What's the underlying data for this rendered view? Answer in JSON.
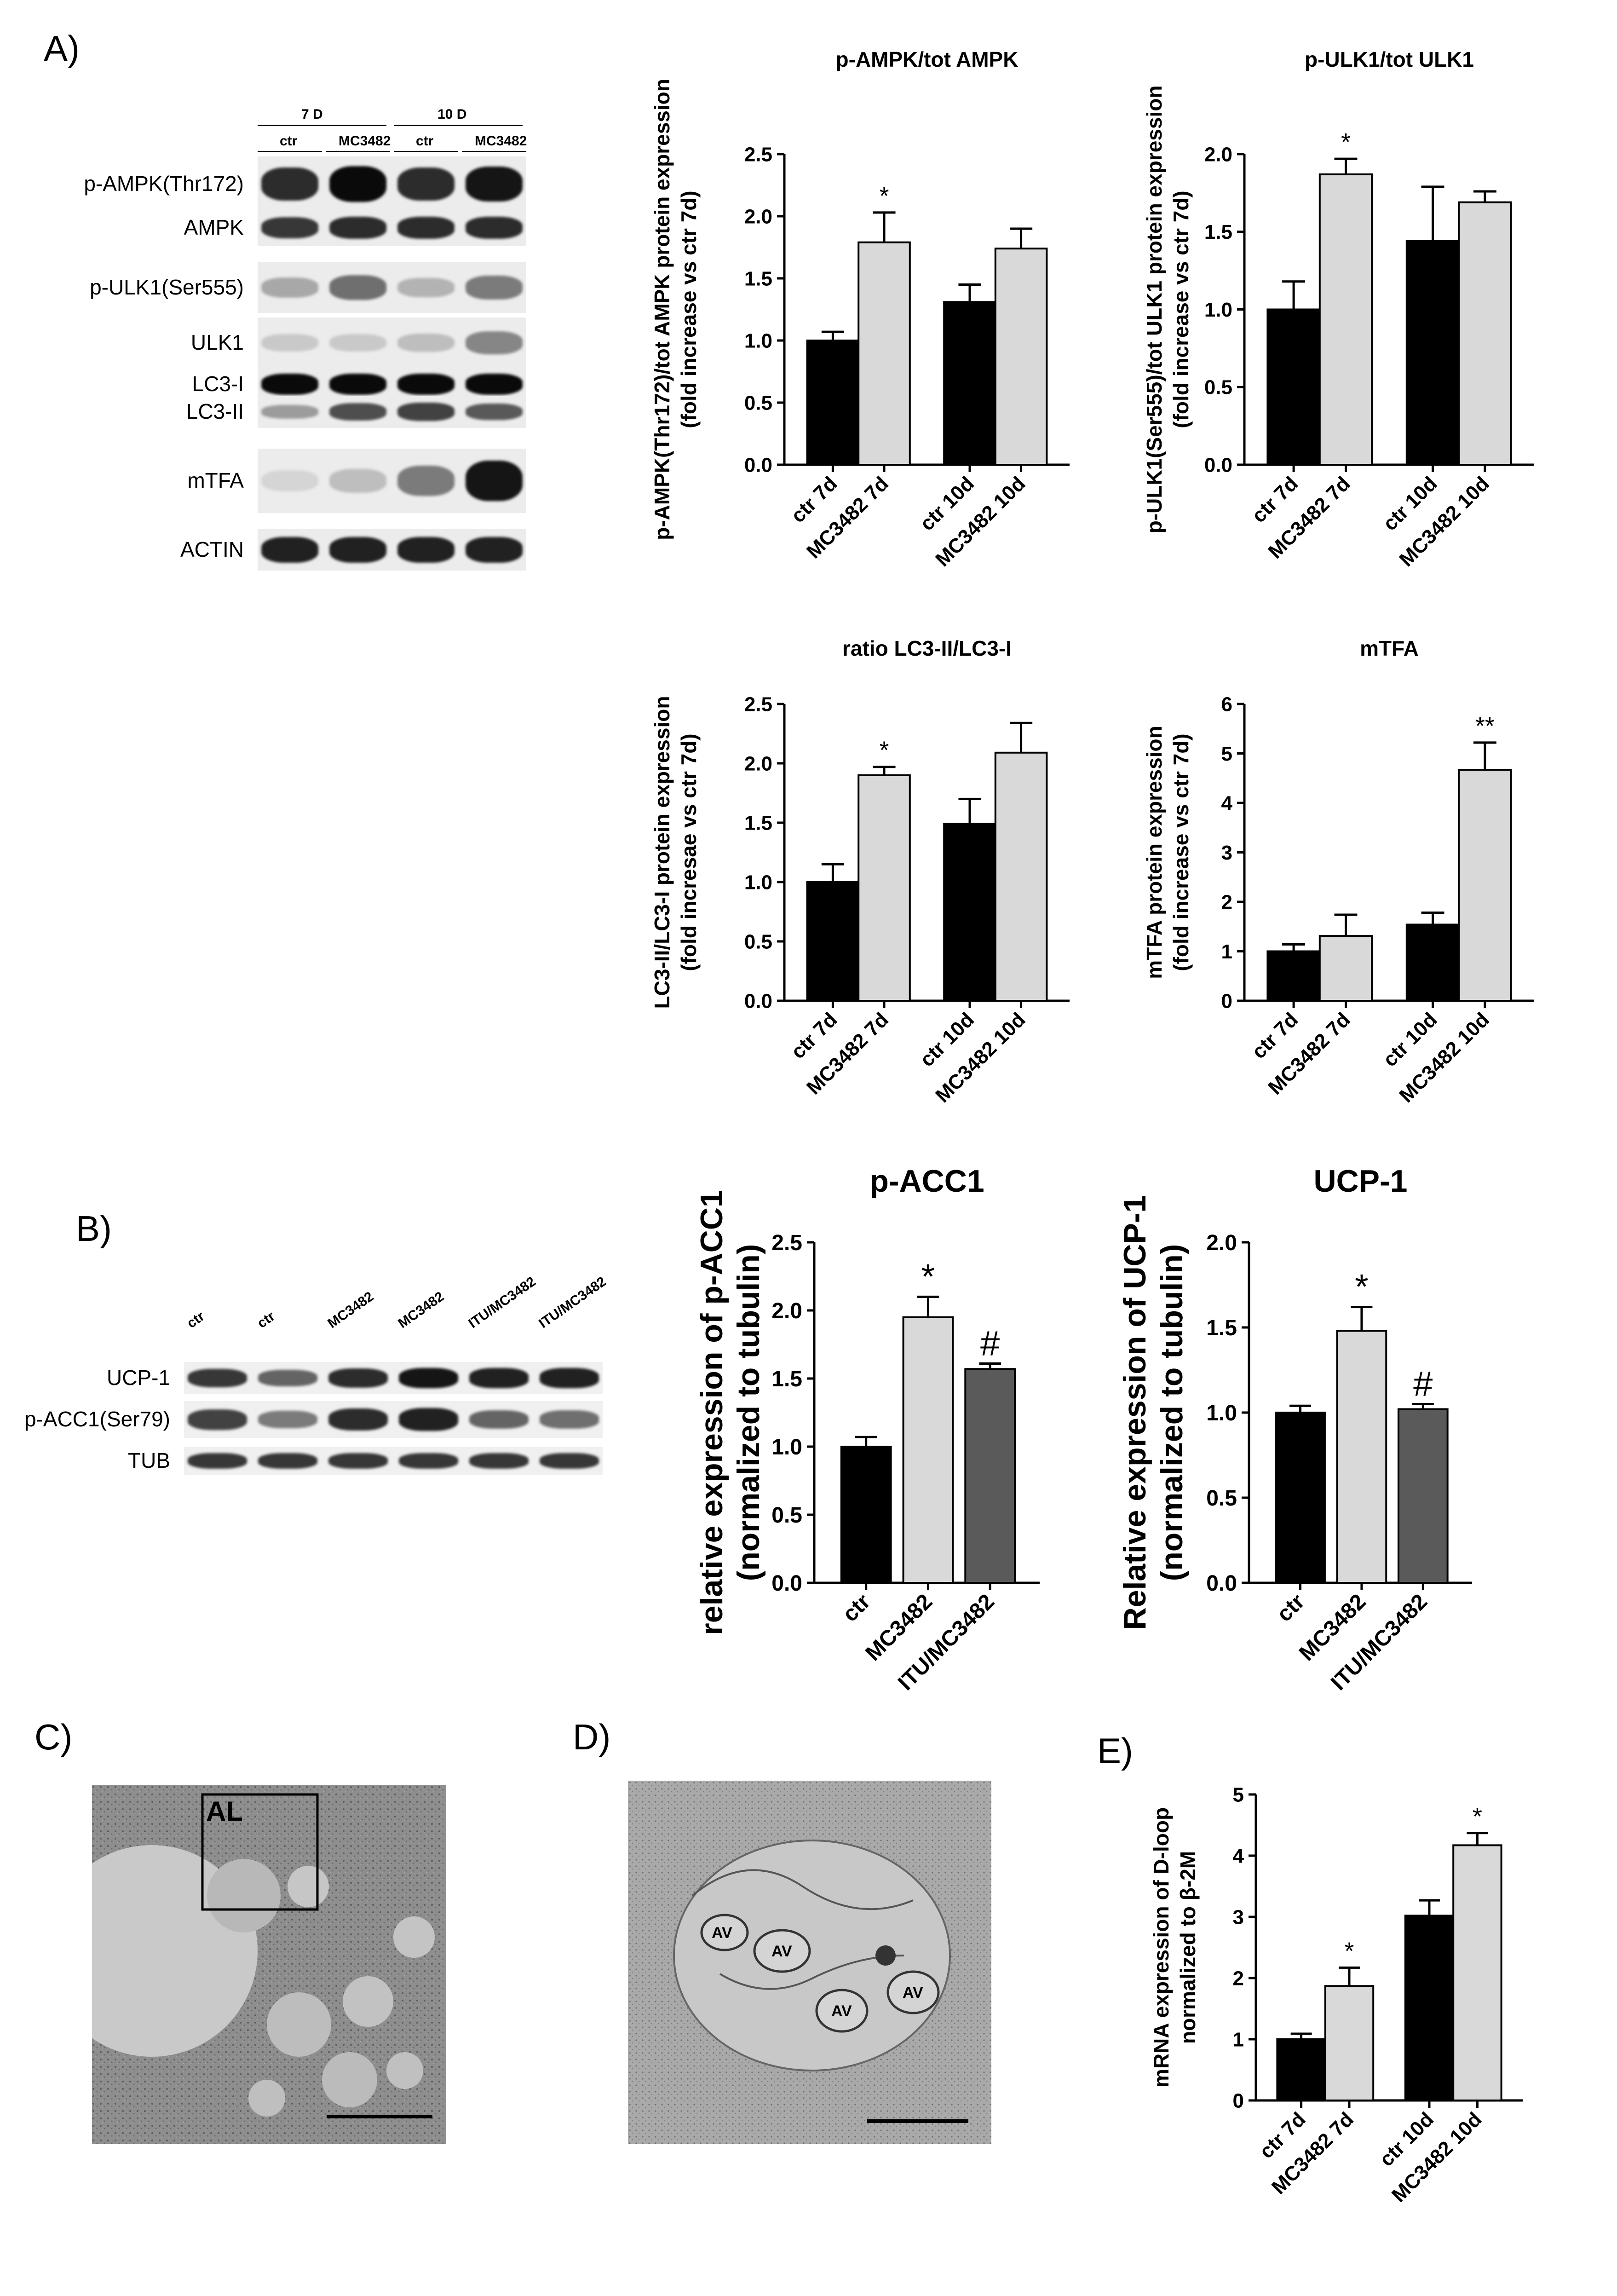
{
  "panels": {
    "A": "A)",
    "B": "B)",
    "C": "C)",
    "D": "D)",
    "E": "E)"
  },
  "blotA": {
    "groups": [
      "7 D",
      "10 D"
    ],
    "lanes": [
      "ctr",
      "MC3482",
      "ctr",
      "MC3482"
    ],
    "rows": [
      {
        "label": "p-AMPK(Thr172)",
        "intensity": [
          0.85,
          1.0,
          0.85,
          0.95
        ]
      },
      {
        "label": "AMPK",
        "intensity": [
          0.8,
          0.85,
          0.85,
          0.85
        ]
      },
      {
        "label": "p-ULK1(Ser555)",
        "intensity": [
          0.3,
          0.55,
          0.25,
          0.5
        ]
      },
      {
        "label": "ULK1",
        "intensity": [
          0.15,
          0.15,
          0.2,
          0.45
        ]
      },
      {
        "label": "LC3-I",
        "intensity": [
          1.0,
          1.0,
          1.0,
          1.0
        ]
      },
      {
        "label": "LC3-II",
        "intensity": [
          0.35,
          0.7,
          0.75,
          0.65
        ]
      },
      {
        "label": "mTFA",
        "intensity": [
          0.1,
          0.2,
          0.5,
          0.95
        ]
      },
      {
        "label": "ACTIN",
        "intensity": [
          0.9,
          0.9,
          0.9,
          0.9
        ]
      }
    ]
  },
  "blotB": {
    "lanes": [
      "ctr",
      "ctr",
      "MC3482",
      "MC3482",
      "ITU/MC3482",
      "ITU/MC3482"
    ],
    "rows": [
      {
        "label": "UCP-1",
        "intensity": [
          0.8,
          0.6,
          0.85,
          0.95,
          0.9,
          0.9
        ]
      },
      {
        "label": "p-ACC1(Ser79)",
        "intensity": [
          0.75,
          0.5,
          0.85,
          0.9,
          0.6,
          0.55
        ]
      },
      {
        "label": "TUB",
        "intensity": [
          0.8,
          0.8,
          0.8,
          0.8,
          0.8,
          0.8
        ]
      }
    ]
  },
  "micrographs": {
    "C_label": "AL",
    "D_labels": [
      "AV",
      "AV",
      "AV",
      "AV"
    ]
  },
  "colors": {
    "black_bar": "#000000",
    "light_bar": "#d9d9d9",
    "dark_gray_bar": "#5a5a5a"
  },
  "chart_data": [
    {
      "id": "ampk",
      "type": "bar",
      "title": "p-AMPK/tot AMPK",
      "ylabel": "p-AMPK(Thr172)/tot AMPK protein expression (fold increase vs ctr 7d)",
      "ylabel_lines": [
        "p-AMPK(Thr172)/tot AMPK protein expression",
        "(fold increase vs ctr 7d)"
      ],
      "categories": [
        "ctr 7d",
        "MC3482 7d",
        "ctr 10d",
        "MC3482 10d"
      ],
      "values": [
        1.0,
        1.79,
        1.31,
        1.74
      ],
      "errors": [
        0.07,
        0.24,
        0.14,
        0.16
      ],
      "colors": [
        "black_bar",
        "light_bar",
        "black_bar",
        "light_bar"
      ],
      "annotations": [
        "",
        "*",
        "",
        ""
      ],
      "ylim": [
        0,
        2.5
      ],
      "yticks": [
        "0.0",
        "0.5",
        "1.0",
        "1.5",
        "2.0",
        "2.5"
      ]
    },
    {
      "id": "ulk1",
      "type": "bar",
      "title": "p-ULK1/tot ULK1",
      "ylabel": "p-ULK1(Ser555)/tot ULK1 protein expression (fold increase vs ctr 7d)",
      "ylabel_lines": [
        "p-ULK1(Ser555)/tot ULK1 protein expression",
        "(fold increase vs ctr 7d)"
      ],
      "categories": [
        "ctr 7d",
        "MC3482 7d",
        "ctr 10d",
        "MC3482 10d"
      ],
      "values": [
        1.0,
        1.87,
        1.44,
        1.69
      ],
      "errors": [
        0.18,
        0.1,
        0.35,
        0.07
      ],
      "colors": [
        "black_bar",
        "light_bar",
        "black_bar",
        "light_bar"
      ],
      "annotations": [
        "",
        "*",
        "",
        ""
      ],
      "ylim": [
        0,
        2.0
      ],
      "yticks": [
        "0.0",
        "0.5",
        "1.0",
        "1.5",
        "2.0"
      ]
    },
    {
      "id": "lc3",
      "type": "bar",
      "title": "ratio LC3-II/LC3-I",
      "ylabel": "LC3-II/LC3-I protein expression (fold incresae vs ctr 7d)",
      "ylabel_lines": [
        "LC3-II/LC3-I protein expression",
        "(fold incresae vs ctr 7d)"
      ],
      "categories": [
        "ctr 7d",
        "MC3482 7d",
        "ctr 10d",
        "MC3482 10d"
      ],
      "values": [
        1.0,
        1.9,
        1.49,
        2.09
      ],
      "errors": [
        0.15,
        0.07,
        0.21,
        0.25
      ],
      "colors": [
        "black_bar",
        "light_bar",
        "black_bar",
        "light_bar"
      ],
      "annotations": [
        "",
        "*",
        "",
        ""
      ],
      "ylim": [
        0,
        2.5
      ],
      "yticks": [
        "0.0",
        "0.5",
        "1.0",
        "1.5",
        "2.0",
        "2.5"
      ]
    },
    {
      "id": "mtfa",
      "type": "bar",
      "title": "mTFA",
      "ylabel": "mTFA protein expression (fold increase vs ctr 7d)",
      "ylabel_lines": [
        "mTFA protein expression",
        "(fold increase vs ctr 7d)"
      ],
      "categories": [
        "ctr 7d",
        "MC3482 7d",
        "ctr 10d",
        "MC3482 10d"
      ],
      "values": [
        1.0,
        1.31,
        1.54,
        4.67
      ],
      "errors": [
        0.14,
        0.43,
        0.24,
        0.55
      ],
      "colors": [
        "black_bar",
        "light_bar",
        "black_bar",
        "light_bar"
      ],
      "annotations": [
        "",
        "",
        "",
        "**"
      ],
      "ylim": [
        0,
        6
      ],
      "yticks": [
        "0",
        "1",
        "2",
        "3",
        "4",
        "5",
        "6"
      ]
    },
    {
      "id": "pacc1",
      "type": "bar",
      "title": "p-ACC1",
      "ylabel": "relative expression of p-ACC1 (normalized to tubulin)",
      "ylabel_lines": [
        "relative expression of p-ACC1",
        "(normalized to tubulin)"
      ],
      "categories": [
        "ctr",
        "MC3482",
        "ITU/MC3482"
      ],
      "values": [
        1.0,
        1.95,
        1.57
      ],
      "errors": [
        0.07,
        0.15,
        0.04
      ],
      "colors": [
        "black_bar",
        "light_bar",
        "dark_gray_bar"
      ],
      "annotations": [
        "",
        "*",
        "#"
      ],
      "ylim": [
        0,
        2.5
      ],
      "yticks": [
        "0.0",
        "0.5",
        "1.0",
        "1.5",
        "2.0",
        "2.5"
      ]
    },
    {
      "id": "ucp1",
      "type": "bar",
      "title": "UCP-1",
      "ylabel": "Relative expression of UCP-1 (normalized to tubulin)",
      "ylabel_lines": [
        "Relative expression of UCP-1",
        "(normalized to tubulin)"
      ],
      "categories": [
        "ctr",
        "MC3482",
        "ITU/MC3482"
      ],
      "values": [
        1.0,
        1.48,
        1.02
      ],
      "errors": [
        0.04,
        0.14,
        0.03
      ],
      "colors": [
        "black_bar",
        "light_bar",
        "dark_gray_bar"
      ],
      "annotations": [
        "",
        "*",
        "#"
      ],
      "ylim": [
        0,
        2.0
      ],
      "yticks": [
        "0.0",
        "0.5",
        "1.0",
        "1.5",
        "2.0"
      ]
    },
    {
      "id": "dloop",
      "type": "bar",
      "title": "",
      "ylabel": "mRNA expression of D-loop normalized to β-2M",
      "ylabel_lines": [
        "mRNA expression of D-loop",
        "normalized to β-2M"
      ],
      "categories": [
        "ctr 7d",
        "MC3482 7d",
        "ctr 10d",
        "MC3482 10d"
      ],
      "values": [
        1.0,
        1.87,
        3.02,
        4.17
      ],
      "errors": [
        0.09,
        0.3,
        0.25,
        0.2
      ],
      "colors": [
        "black_bar",
        "light_bar",
        "black_bar",
        "light_bar"
      ],
      "annotations": [
        "",
        "*",
        "",
        "*"
      ],
      "ylim": [
        0,
        5
      ],
      "yticks": [
        "0",
        "1",
        "2",
        "3",
        "4",
        "5"
      ]
    }
  ]
}
